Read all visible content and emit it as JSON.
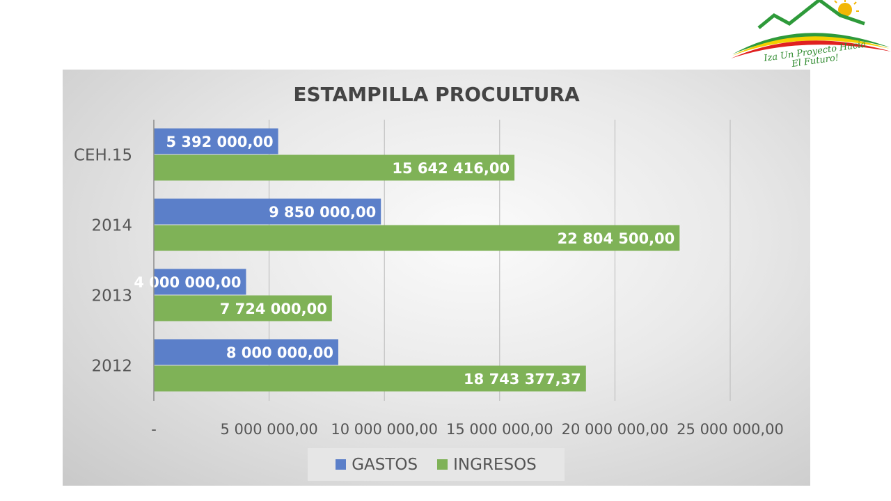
{
  "logo": {
    "line1": "Iza Un Proyecto Hacia",
    "line2": "El Futuro!",
    "colors": {
      "red": "#e02020",
      "yellow": "#f5d000",
      "green": "#2e9a3a",
      "sun": "#f2b705"
    }
  },
  "chart_data": {
    "type": "bar",
    "orientation": "horizontal",
    "title": "ESTAMPILLA PROCULTURA",
    "categories": [
      "2012",
      "2013",
      "2014",
      "CEH.15"
    ],
    "series": [
      {
        "name": "GASTOS",
        "color": "#5b7fc9",
        "values": [
          8000000.0,
          4000000.0,
          9850000.0,
          5392000.0
        ],
        "labels": [
          "8 000 000,00",
          "4 000 000,00",
          "9 850 000,00",
          "5 392 000,00"
        ]
      },
      {
        "name": "INGRESOS",
        "color": "#7fb257",
        "values": [
          18743377.37,
          7724000.0,
          22804500.0,
          15642416.0
        ],
        "labels": [
          "18 743 377,37",
          "7 724 000,00",
          "22 804 500,00",
          "15 642 416,00"
        ]
      }
    ],
    "xlim": [
      0,
      25000000
    ],
    "xticks": [
      0,
      5000000,
      10000000,
      15000000,
      20000000,
      25000000
    ],
    "xtick_labels": [
      "-",
      "5 000 000,00",
      "10 000 000,00",
      "15 000 000,00",
      "20 000 000,00",
      "25 000 000,00"
    ],
    "grid": "vertical",
    "legend_position": "bottom"
  }
}
